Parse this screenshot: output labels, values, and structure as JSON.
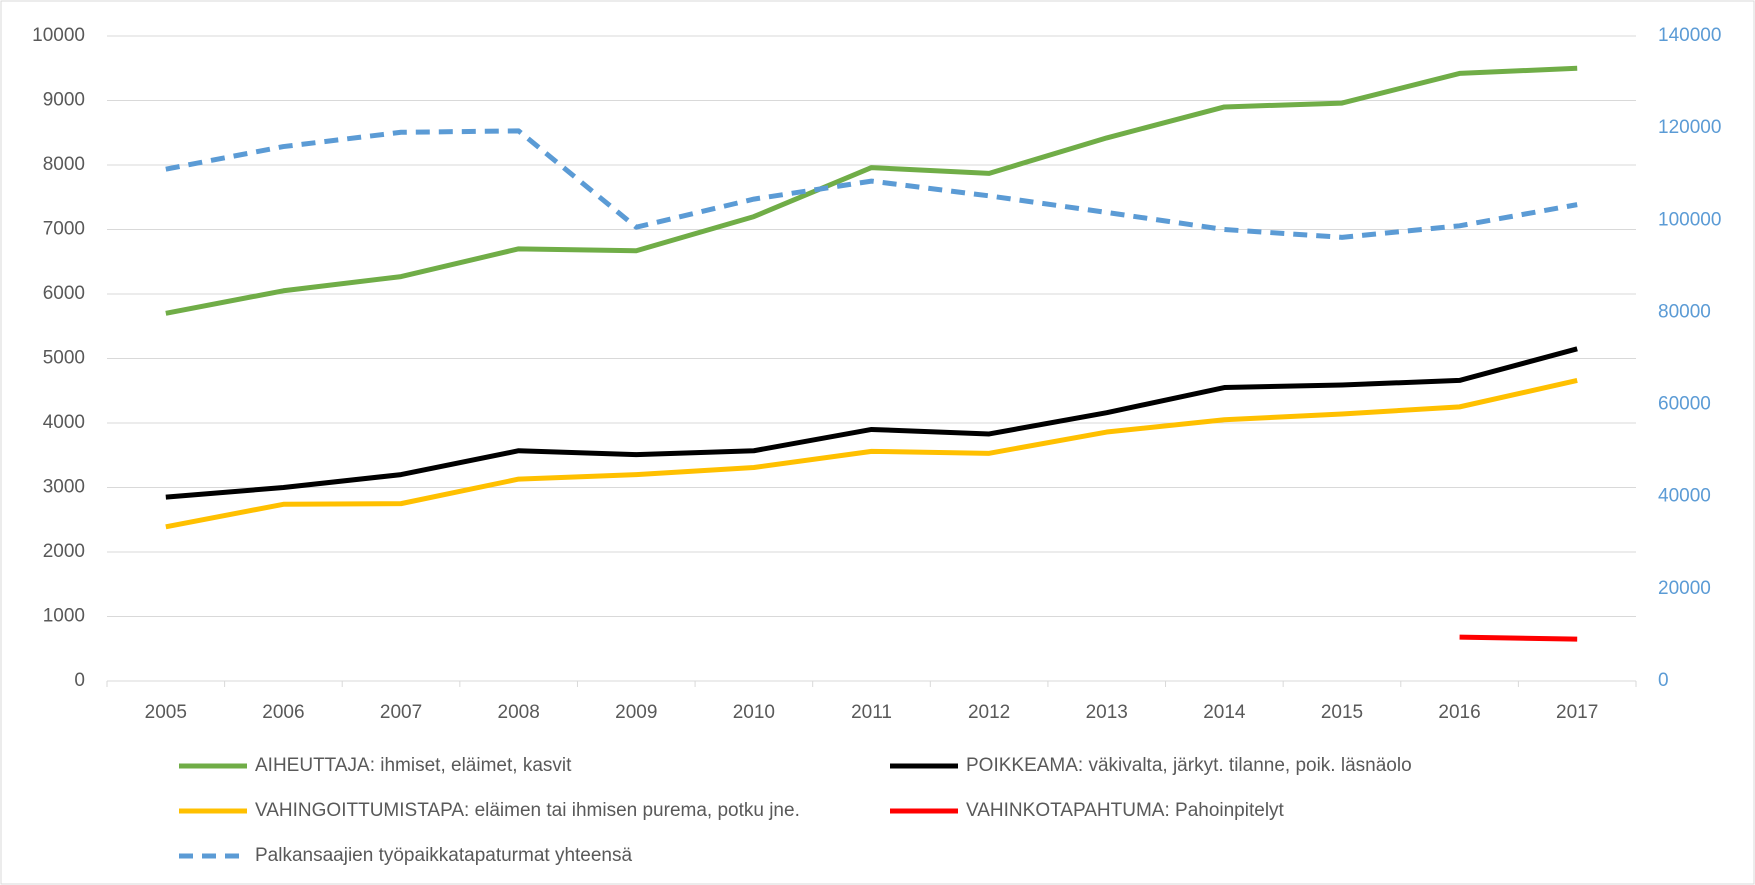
{
  "chart_data": {
    "type": "line",
    "categories": [
      "2005",
      "2006",
      "2007",
      "2008",
      "2009",
      "2010",
      "2011",
      "2012",
      "2013",
      "2014",
      "2015",
      "2016",
      "2017"
    ],
    "ylim": [
      0,
      10000
    ],
    "yticks": [
      0,
      1000,
      2000,
      3000,
      4000,
      5000,
      6000,
      7000,
      8000,
      9000,
      10000
    ],
    "y2lim": [
      0,
      140000
    ],
    "y2ticks": [
      0,
      20000,
      40000,
      60000,
      80000,
      100000,
      120000,
      140000
    ],
    "grid": true,
    "legend": "bottom",
    "series": [
      {
        "name": "AIHEUTTAJA: ihmiset, eläimet, kasvit",
        "color": "#70ad47",
        "values": [
          5700,
          6050,
          6270,
          6700,
          6670,
          7200,
          7960,
          7870,
          8420,
          8900,
          8960,
          9420,
          9500
        ]
      },
      {
        "name": "POIKKEAMA: väkivalta, järkyt. tilanne, poik. läsnäolo",
        "color": "#000000",
        "values": [
          2850,
          3000,
          3200,
          3570,
          3510,
          3570,
          3900,
          3830,
          4160,
          4550,
          4590,
          4660,
          5150
        ]
      },
      {
        "name": "VAHINGOITTUMISTAPA: eläimen tai ihmisen purema, potku jne.",
        "color": "#ffc000",
        "values": [
          2390,
          2740,
          2750,
          3130,
          3200,
          3310,
          3560,
          3530,
          3860,
          4050,
          4140,
          4250,
          4660
        ]
      },
      {
        "name": "VAHINKOTAPAHTUMA: Pahoinpitelyt",
        "color": "#ff0000",
        "values": [
          null,
          null,
          null,
          null,
          null,
          null,
          null,
          null,
          null,
          null,
          null,
          680,
          650
        ]
      },
      {
        "name": "Palkansaajien työpaikkatapaturmat yhteensä",
        "color": "#5b9bd5",
        "dashed": true,
        "axis": "y2",
        "values": [
          111100,
          116000,
          119100,
          119400,
          98500,
          104600,
          108500,
          105300,
          101700,
          98000,
          96300,
          98800,
          103400
        ]
      }
    ]
  }
}
